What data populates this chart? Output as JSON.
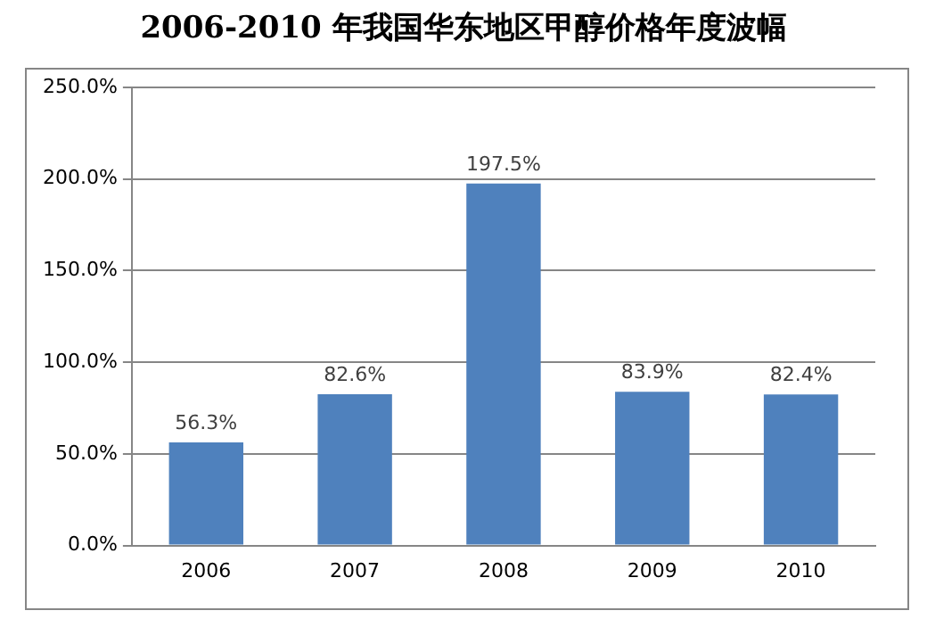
{
  "chart_data": {
    "type": "bar",
    "title": "2006-2010 年我国华东地区甲醇价格年度波幅",
    "categories": [
      "2006",
      "2007",
      "2008",
      "2009",
      "2010"
    ],
    "values": [
      56.3,
      82.6,
      197.5,
      83.9,
      82.4
    ],
    "value_labels": [
      "56.3%",
      "82.6%",
      "197.5%",
      "83.9%",
      "82.4%"
    ],
    "color": "#4f81bd",
    "ylim": [
      0,
      250
    ],
    "yticks": [
      {
        "value": 0,
        "label": "0.0%"
      },
      {
        "value": 50,
        "label": "50.0%"
      },
      {
        "value": 100,
        "label": "100.0%"
      },
      {
        "value": 150,
        "label": "150.0%"
      },
      {
        "value": 200,
        "label": "200.0%"
      },
      {
        "value": 250,
        "label": "250.0%"
      }
    ],
    "grid": "y",
    "legend": false
  }
}
